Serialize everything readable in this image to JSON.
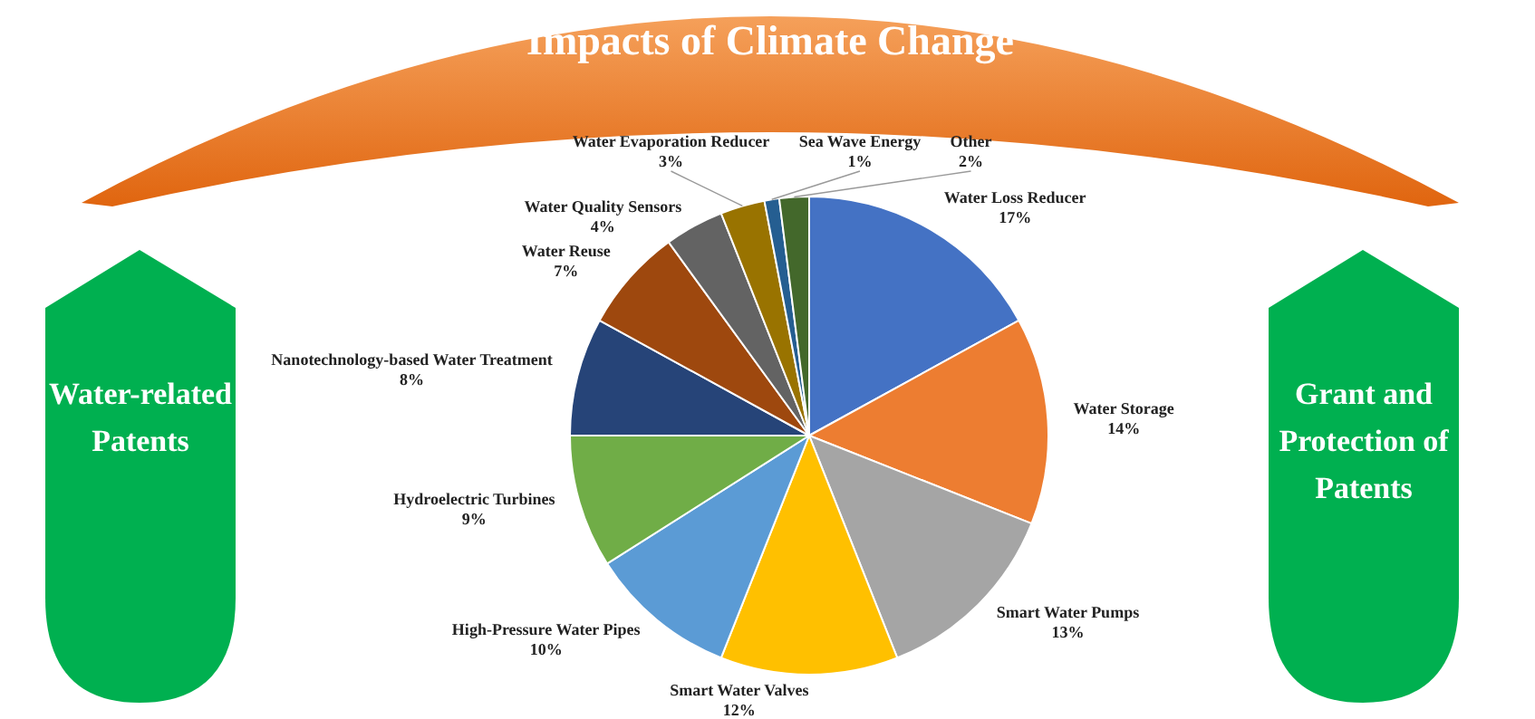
{
  "chart_data": {
    "type": "pie",
    "title": "Impacts of Climate Change",
    "categories": [
      "Water Loss Reducer",
      "Water Storage",
      "Smart Water Pumps",
      "Smart Water Valves",
      "High-Pressure Water Pipes",
      "Hydroelectric Turbines",
      "Nanotechnology-based Water Treatment",
      "Water Reuse",
      "Water Quality Sensors",
      "Water Evaporation Reducer",
      "Sea Wave Energy",
      "Other"
    ],
    "values": [
      17,
      14,
      13,
      12,
      10,
      9,
      8,
      7,
      4,
      3,
      1,
      2
    ],
    "value_labels": [
      "17%",
      "14%",
      "13%",
      "12%",
      "10%",
      "9%",
      "8%",
      "7%",
      "4%",
      "3%",
      "1%",
      "2%"
    ],
    "colors": [
      "#4472c4",
      "#ed7d31",
      "#a5a5a5",
      "#ffc000",
      "#5b9bd5",
      "#70ad47",
      "#264478",
      "#9e480e",
      "#636363",
      "#997300",
      "#255e91",
      "#43682b"
    ],
    "legend": false,
    "annotations": [
      "Water-related Patents",
      "Grant and Protection of Patents"
    ]
  }
}
